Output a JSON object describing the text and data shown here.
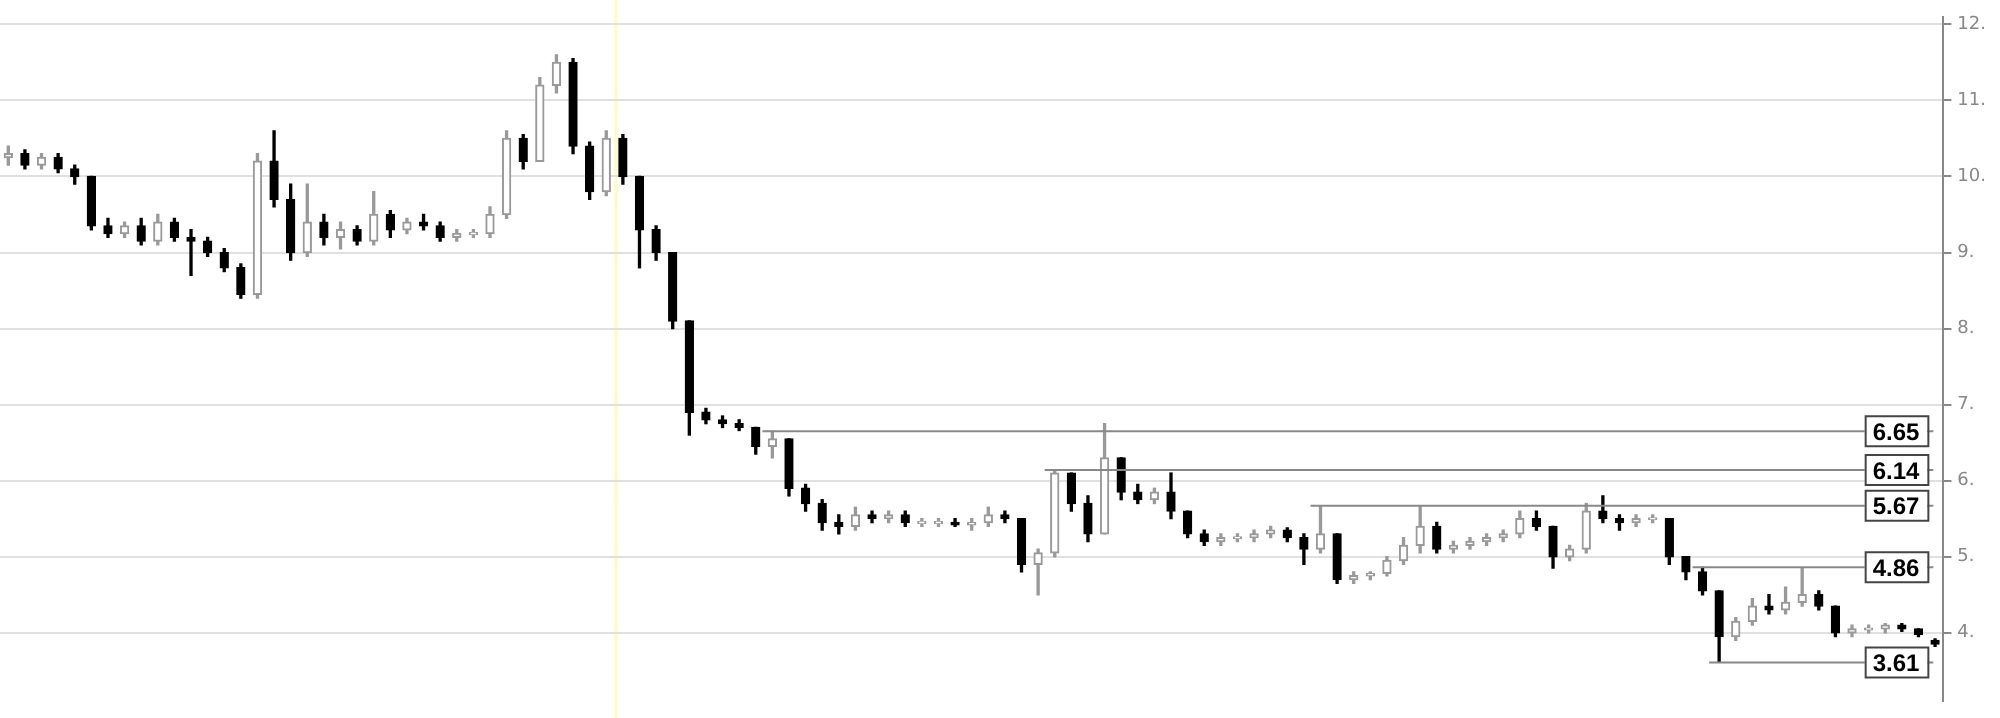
{
  "chart_data": {
    "type": "candlestick",
    "categories": [
      null,
      null,
      null,
      null,
      null,
      null,
      null,
      null,
      null,
      null,
      null,
      null,
      null,
      null,
      null,
      null,
      null,
      null,
      null,
      null,
      null,
      null,
      null,
      null,
      null,
      null,
      null,
      null,
      null,
      null,
      null,
      null,
      null,
      null,
      null,
      null,
      null,
      null,
      null,
      null,
      null,
      null,
      null,
      null,
      null,
      null,
      null,
      null,
      null,
      null,
      null,
      null,
      null,
      null,
      null,
      null,
      null,
      null,
      null,
      null,
      null,
      null,
      null,
      null,
      null,
      null,
      null,
      null,
      null,
      null,
      null,
      null,
      null,
      null,
      null,
      null,
      null,
      null,
      null,
      null,
      null,
      null,
      null,
      null,
      null,
      null,
      null,
      null,
      null,
      null,
      null,
      null,
      null,
      null,
      null,
      null,
      null,
      null,
      null,
      null,
      null,
      null,
      null,
      null,
      null,
      null,
      null,
      null,
      null,
      null,
      null,
      null,
      null,
      null,
      null,
      null,
      null
    ],
    "ohlc": [
      [
        10.25,
        10.4,
        10.15,
        10.3
      ],
      [
        10.3,
        10.35,
        10.1,
        10.15
      ],
      [
        10.15,
        10.3,
        10.1,
        10.25
      ],
      [
        10.25,
        10.3,
        10.05,
        10.1
      ],
      [
        10.1,
        10.15,
        9.9,
        10.0
      ],
      [
        10.0,
        10.0,
        9.3,
        9.35
      ],
      [
        9.35,
        9.45,
        9.2,
        9.25
      ],
      [
        9.25,
        9.4,
        9.2,
        9.35
      ],
      [
        9.35,
        9.45,
        9.1,
        9.15
      ],
      [
        9.15,
        9.5,
        9.1,
        9.4
      ],
      [
        9.4,
        9.45,
        9.15,
        9.2
      ],
      [
        9.2,
        9.3,
        8.7,
        9.15
      ],
      [
        9.15,
        9.2,
        8.95,
        9.0
      ],
      [
        9.0,
        9.05,
        8.75,
        8.8
      ],
      [
        8.8,
        8.85,
        8.4,
        8.45
      ],
      [
        8.45,
        10.3,
        8.4,
        10.2
      ],
      [
        10.2,
        10.6,
        9.6,
        9.7
      ],
      [
        9.7,
        9.9,
        8.9,
        9.0
      ],
      [
        9.0,
        9.9,
        8.95,
        9.4
      ],
      [
        9.4,
        9.5,
        9.1,
        9.2
      ],
      [
        9.2,
        9.4,
        9.05,
        9.3
      ],
      [
        9.3,
        9.35,
        9.1,
        9.15
      ],
      [
        9.15,
        9.8,
        9.1,
        9.5
      ],
      [
        9.5,
        9.55,
        9.2,
        9.3
      ],
      [
        9.3,
        9.45,
        9.25,
        9.4
      ],
      [
        9.4,
        9.5,
        9.3,
        9.35
      ],
      [
        9.35,
        9.4,
        9.15,
        9.2
      ],
      [
        9.2,
        9.3,
        9.15,
        9.25
      ],
      [
        9.25,
        9.3,
        9.2,
        9.25
      ],
      [
        9.25,
        9.6,
        9.2,
        9.5
      ],
      [
        9.5,
        10.6,
        9.45,
        10.5
      ],
      [
        10.5,
        10.55,
        10.1,
        10.2
      ],
      [
        10.2,
        11.3,
        10.2,
        11.2
      ],
      [
        11.2,
        11.6,
        11.1,
        11.5
      ],
      [
        11.5,
        11.55,
        10.3,
        10.4
      ],
      [
        10.4,
        10.45,
        9.7,
        9.8
      ],
      [
        9.8,
        10.6,
        9.75,
        10.5
      ],
      [
        10.5,
        10.55,
        9.9,
        10.0
      ],
      [
        10.0,
        10.0,
        8.8,
        9.3
      ],
      [
        9.3,
        9.35,
        8.9,
        9.0
      ],
      [
        9.0,
        9.0,
        8.0,
        8.1
      ],
      [
        8.1,
        8.1,
        6.6,
        6.9
      ],
      [
        6.9,
        6.95,
        6.75,
        6.8
      ],
      [
        6.8,
        6.85,
        6.7,
        6.75
      ],
      [
        6.75,
        6.8,
        6.66,
        6.7
      ],
      [
        6.7,
        6.7,
        6.35,
        6.45
      ],
      [
        6.45,
        6.65,
        6.3,
        6.55
      ],
      [
        6.55,
        6.55,
        5.8,
        5.9
      ],
      [
        5.9,
        5.95,
        5.6,
        5.7
      ],
      [
        5.7,
        5.75,
        5.35,
        5.45
      ],
      [
        5.45,
        5.55,
        5.3,
        5.4
      ],
      [
        5.4,
        5.65,
        5.35,
        5.55
      ],
      [
        5.55,
        5.6,
        5.45,
        5.5
      ],
      [
        5.5,
        5.6,
        5.45,
        5.55
      ],
      [
        5.55,
        5.6,
        5.4,
        5.45
      ],
      [
        5.45,
        5.5,
        5.4,
        5.45
      ],
      [
        5.45,
        5.5,
        5.4,
        5.45
      ],
      [
        5.45,
        5.5,
        5.4,
        5.42
      ],
      [
        5.42,
        5.5,
        5.35,
        5.45
      ],
      [
        5.45,
        5.65,
        5.4,
        5.55
      ],
      [
        5.55,
        5.6,
        5.45,
        5.5
      ],
      [
        5.5,
        5.5,
        4.8,
        4.9
      ],
      [
        4.9,
        5.1,
        4.5,
        5.05
      ],
      [
        5.05,
        6.14,
        5.0,
        6.1
      ],
      [
        6.1,
        6.1,
        5.6,
        5.7
      ],
      [
        5.7,
        5.8,
        5.2,
        5.3
      ],
      [
        5.3,
        6.75,
        5.3,
        6.3
      ],
      [
        6.3,
        6.3,
        5.75,
        5.85
      ],
      [
        5.85,
        5.95,
        5.7,
        5.75
      ],
      [
        5.75,
        5.9,
        5.7,
        5.85
      ],
      [
        5.85,
        6.1,
        5.5,
        5.6
      ],
      [
        5.6,
        5.6,
        5.25,
        5.3
      ],
      [
        5.3,
        5.35,
        5.15,
        5.2
      ],
      [
        5.2,
        5.3,
        5.15,
        5.25
      ],
      [
        5.25,
        5.3,
        5.2,
        5.25
      ],
      [
        5.25,
        5.35,
        5.2,
        5.3
      ],
      [
        5.3,
        5.4,
        5.25,
        5.35
      ],
      [
        5.35,
        5.38,
        5.2,
        5.25
      ],
      [
        5.25,
        5.3,
        4.9,
        5.1
      ],
      [
        5.1,
        5.67,
        5.05,
        5.3
      ],
      [
        5.3,
        5.3,
        4.65,
        4.7
      ],
      [
        4.7,
        4.8,
        4.65,
        4.75
      ],
      [
        4.75,
        4.8,
        4.7,
        4.78
      ],
      [
        4.78,
        5.0,
        4.75,
        4.95
      ],
      [
        4.95,
        5.25,
        4.9,
        5.15
      ],
      [
        5.15,
        5.66,
        5.05,
        5.4
      ],
      [
        5.4,
        5.45,
        5.05,
        5.1
      ],
      [
        5.1,
        5.2,
        5.05,
        5.15
      ],
      [
        5.15,
        5.25,
        5.1,
        5.2
      ],
      [
        5.2,
        5.3,
        5.15,
        5.25
      ],
      [
        5.25,
        5.35,
        5.2,
        5.3
      ],
      [
        5.3,
        5.6,
        5.25,
        5.5
      ],
      [
        5.5,
        5.6,
        5.35,
        5.4
      ],
      [
        5.4,
        5.4,
        4.85,
        5.0
      ],
      [
        5.0,
        5.15,
        4.95,
        5.1
      ],
      [
        5.1,
        5.7,
        5.05,
        5.6
      ],
      [
        5.6,
        5.8,
        5.45,
        5.5
      ],
      [
        5.5,
        5.55,
        5.35,
        5.45
      ],
      [
        5.45,
        5.55,
        5.4,
        5.5
      ],
      [
        5.5,
        5.55,
        5.45,
        5.5
      ],
      [
        5.5,
        5.5,
        4.9,
        5.0
      ],
      [
        5.0,
        5.0,
        4.7,
        4.8
      ],
      [
        4.8,
        4.86,
        4.5,
        4.55
      ],
      [
        4.55,
        4.55,
        3.61,
        3.95
      ],
      [
        3.95,
        4.2,
        3.9,
        4.15
      ],
      [
        4.15,
        4.45,
        4.1,
        4.35
      ],
      [
        4.35,
        4.5,
        4.25,
        4.3
      ],
      [
        4.3,
        4.6,
        4.25,
        4.4
      ],
      [
        4.4,
        4.85,
        4.35,
        4.5
      ],
      [
        4.5,
        4.55,
        4.3,
        4.35
      ],
      [
        4.35,
        4.35,
        3.95,
        4.0
      ],
      [
        4.0,
        4.1,
        3.95,
        4.05
      ],
      [
        4.05,
        4.1,
        4.0,
        4.05
      ],
      [
        4.05,
        4.12,
        4.0,
        4.1
      ],
      [
        4.1,
        4.12,
        4.02,
        4.05
      ],
      [
        4.05,
        4.05,
        3.95,
        3.98
      ],
      [
        3.9,
        3.92,
        3.82,
        3.85
      ]
    ],
    "ylim": [
      3.1,
      12.1
    ],
    "yticks": [
      {
        "value": 4,
        "label": "4."
      },
      {
        "value": 5,
        "label": "5."
      },
      {
        "value": 6,
        "label": "6."
      },
      {
        "value": 7,
        "label": "7."
      },
      {
        "value": 8,
        "label": "8."
      },
      {
        "value": 9,
        "label": "9."
      },
      {
        "value": 10,
        "label": "10."
      },
      {
        "value": 11,
        "label": "11."
      },
      {
        "value": 12,
        "label": "12."
      }
    ],
    "grid": "y",
    "ref_lines": [
      {
        "axis": "y",
        "value": 6.65,
        "label": "6.65",
        "color": "#888888"
      },
      {
        "axis": "y",
        "value": 6.14,
        "label": "6.14",
        "color": "#888888"
      },
      {
        "axis": "y",
        "value": 5.67,
        "label": "5.67",
        "color": "#888888"
      },
      {
        "axis": "y",
        "value": 4.86,
        "label": "4.86",
        "color": "#888888"
      },
      {
        "axis": "y",
        "value": 3.61,
        "label": "3.61",
        "color": "#888888"
      }
    ]
  }
}
